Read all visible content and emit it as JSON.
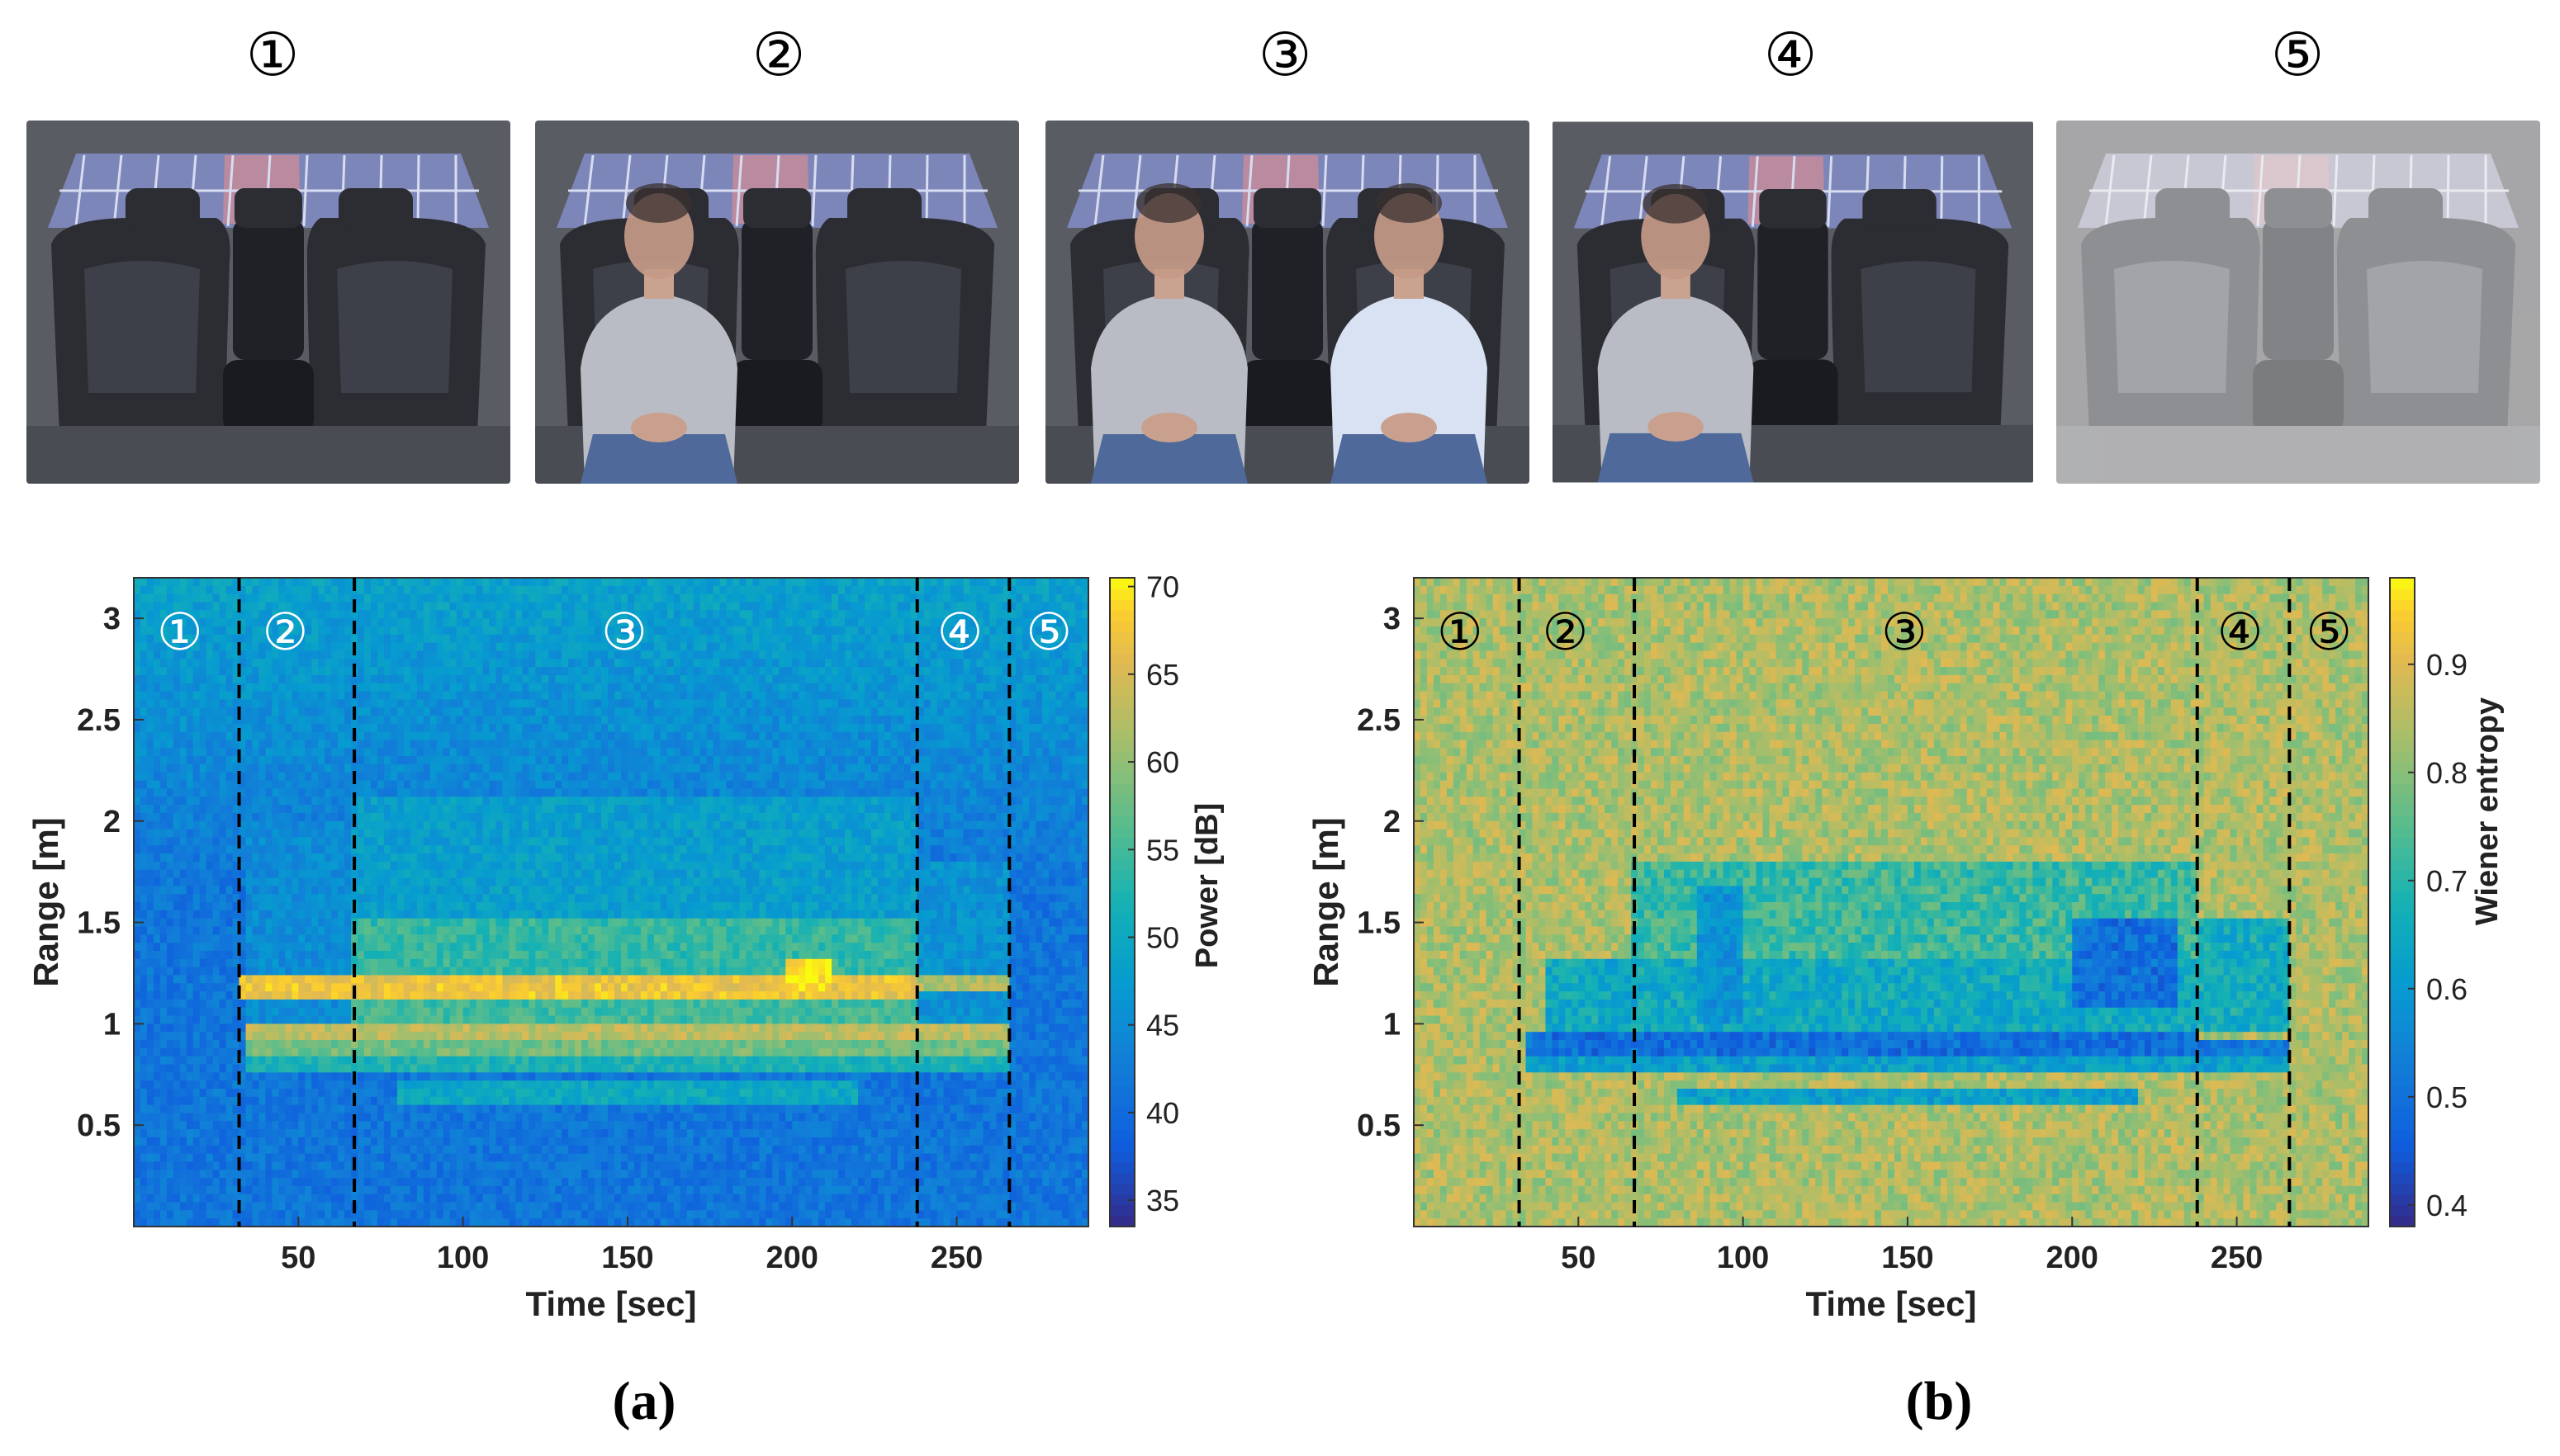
{
  "photos": [
    {
      "label": "①",
      "occupants": 0,
      "tint": "normal"
    },
    {
      "label": "②",
      "occupants": 1,
      "tint": "normal"
    },
    {
      "label": "③",
      "occupants": 2,
      "tint": "normal"
    },
    {
      "label": "④",
      "occupants": 1,
      "tint": "normal"
    },
    {
      "label": "⑤",
      "occupants": 0,
      "tint": "faded"
    }
  ],
  "captions": {
    "a": "(a)",
    "b": "(b)"
  },
  "chart_data": [
    {
      "type": "heatmap",
      "panel": "(a)",
      "xlabel": "Time [sec]",
      "ylabel": "Range [m]",
      "xlim": [
        0,
        290
      ],
      "ylim": [
        0,
        3.2
      ],
      "xticks": [
        50,
        100,
        150,
        200,
        250
      ],
      "yticks": [
        0.5,
        1,
        1.5,
        2,
        2.5,
        3
      ],
      "colorbar": {
        "label": "Power [dB]",
        "min": 33.5,
        "max": 70.5,
        "ticks": [
          35,
          40,
          45,
          50,
          55,
          60,
          65,
          70
        ],
        "colormap": "parula"
      },
      "boundaries": [
        32,
        67,
        238,
        266
      ],
      "phase_labels": [
        "①",
        "②",
        "③",
        "④",
        "⑤"
      ],
      "phase_label_x": [
        14,
        46,
        149,
        251,
        278
      ],
      "phase_label_style": "white-on-dark",
      "features": [
        {
          "kind": "band",
          "t": [
            32,
            238
          ],
          "range": [
            1.12,
            1.22
          ],
          "value": 67
        },
        {
          "kind": "band",
          "t": [
            238,
            266
          ],
          "range": [
            1.18,
            1.26
          ],
          "value": 62
        },
        {
          "kind": "band",
          "t": [
            34,
            266
          ],
          "range": [
            0.9,
            0.98
          ],
          "value": 63
        },
        {
          "kind": "band",
          "t": [
            34,
            266
          ],
          "range": [
            0.82,
            0.9
          ],
          "value": 58
        },
        {
          "kind": "band",
          "t": [
            34,
            266
          ],
          "range": [
            0.75,
            0.82
          ],
          "value": 52
        },
        {
          "kind": "band",
          "t": [
            67,
            238
          ],
          "range": [
            1.0,
            1.1
          ],
          "value": 55
        },
        {
          "kind": "band",
          "t": [
            67,
            238
          ],
          "range": [
            1.22,
            1.5
          ],
          "value": 54
        },
        {
          "kind": "band",
          "t": [
            67,
            238
          ],
          "range": [
            1.5,
            2.1
          ],
          "value": 48
        },
        {
          "kind": "band",
          "t": [
            67,
            238
          ],
          "range": [
            2.1,
            2.5
          ],
          "value": 44
        },
        {
          "kind": "band",
          "t": [
            34,
            67
          ],
          "range": [
            1.0,
            2.0
          ],
          "value": 45
        },
        {
          "kind": "band",
          "t": [
            238,
            266
          ],
          "range": [
            1.0,
            1.8
          ],
          "value": 46
        },
        {
          "kind": "band",
          "t": [
            80,
            220
          ],
          "range": [
            0.6,
            0.72
          ],
          "value": 50
        },
        {
          "kind": "band",
          "t": [
            198,
            212
          ],
          "range": [
            1.18,
            1.3
          ],
          "value": 70
        }
      ]
    },
    {
      "type": "heatmap",
      "panel": "(b)",
      "xlabel": "Time [sec]",
      "ylabel": "Range [m]",
      "xlim": [
        0,
        290
      ],
      "ylim": [
        0,
        3.2
      ],
      "xticks": [
        50,
        100,
        150,
        200,
        250
      ],
      "yticks": [
        0.5,
        1,
        1.5,
        2,
        2.5,
        3
      ],
      "colorbar": {
        "label": "Wiener entropy",
        "min": 0.38,
        "max": 0.98,
        "ticks": [
          0.4,
          0.5,
          0.6,
          0.7,
          0.8,
          0.9
        ],
        "colormap": "parula"
      },
      "boundaries": [
        32,
        67,
        238,
        266
      ],
      "phase_labels": [
        "①",
        "②",
        "③",
        "④",
        "⑤"
      ],
      "phase_label_x": [
        14,
        46,
        149,
        251,
        278
      ],
      "phase_label_style": "black-on-light",
      "features": [
        {
          "kind": "band",
          "t": [
            34,
            238
          ],
          "range": [
            0.86,
            0.96
          ],
          "value": 0.5
        },
        {
          "kind": "band",
          "t": [
            238,
            266
          ],
          "range": [
            0.84,
            0.9
          ],
          "value": 0.52
        },
        {
          "kind": "band",
          "t": [
            34,
            266
          ],
          "range": [
            0.75,
            0.86
          ],
          "value": 0.62
        },
        {
          "kind": "band",
          "t": [
            40,
            238
          ],
          "range": [
            0.96,
            1.3
          ],
          "value": 0.65
        },
        {
          "kind": "band",
          "t": [
            85,
            100
          ],
          "range": [
            1.0,
            1.7
          ],
          "value": 0.58
        },
        {
          "kind": "band",
          "t": [
            200,
            232
          ],
          "range": [
            1.1,
            1.5
          ],
          "value": 0.5
        },
        {
          "kind": "band",
          "t": [
            67,
            238
          ],
          "range": [
            1.3,
            1.8
          ],
          "value": 0.72
        },
        {
          "kind": "band",
          "t": [
            80,
            220
          ],
          "range": [
            0.62,
            0.68
          ],
          "value": 0.62
        },
        {
          "kind": "band",
          "t": [
            238,
            266
          ],
          "range": [
            0.96,
            1.5
          ],
          "value": 0.66
        }
      ]
    }
  ]
}
